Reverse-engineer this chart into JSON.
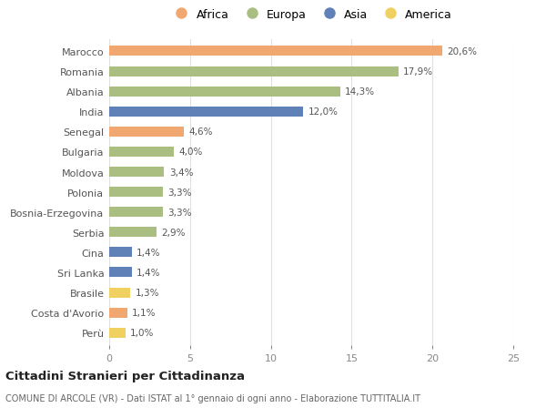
{
  "countries": [
    "Marocco",
    "Romania",
    "Albania",
    "India",
    "Senegal",
    "Bulgaria",
    "Moldova",
    "Polonia",
    "Bosnia-Erzegovina",
    "Serbia",
    "Cina",
    "Sri Lanka",
    "Brasile",
    "Costa d'Avorio",
    "Perù"
  ],
  "values": [
    20.6,
    17.9,
    14.3,
    12.0,
    4.6,
    4.0,
    3.4,
    3.3,
    3.3,
    2.9,
    1.4,
    1.4,
    1.3,
    1.1,
    1.0
  ],
  "labels": [
    "20,6%",
    "17,9%",
    "14,3%",
    "12,0%",
    "4,6%",
    "4,0%",
    "3,4%",
    "3,3%",
    "3,3%",
    "2,9%",
    "1,4%",
    "1,4%",
    "1,3%",
    "1,1%",
    "1,0%"
  ],
  "continents": [
    "Africa",
    "Europa",
    "Europa",
    "Asia",
    "Africa",
    "Europa",
    "Europa",
    "Europa",
    "Europa",
    "Europa",
    "Asia",
    "Asia",
    "America",
    "Africa",
    "America"
  ],
  "colors": {
    "Africa": "#F0A870",
    "Europa": "#ABBE82",
    "Asia": "#6080B8",
    "America": "#F0D060"
  },
  "legend_order": [
    "Africa",
    "Europa",
    "Asia",
    "America"
  ],
  "title": "Cittadini Stranieri per Cittadinanza",
  "subtitle": "COMUNE DI ARCOLE (VR) - Dati ISTAT al 1° gennaio di ogni anno - Elaborazione TUTTITALIA.IT",
  "xlim": [
    0,
    25
  ],
  "xticks": [
    0,
    5,
    10,
    15,
    20,
    25
  ],
  "background_color": "#ffffff",
  "bar_height": 0.5
}
